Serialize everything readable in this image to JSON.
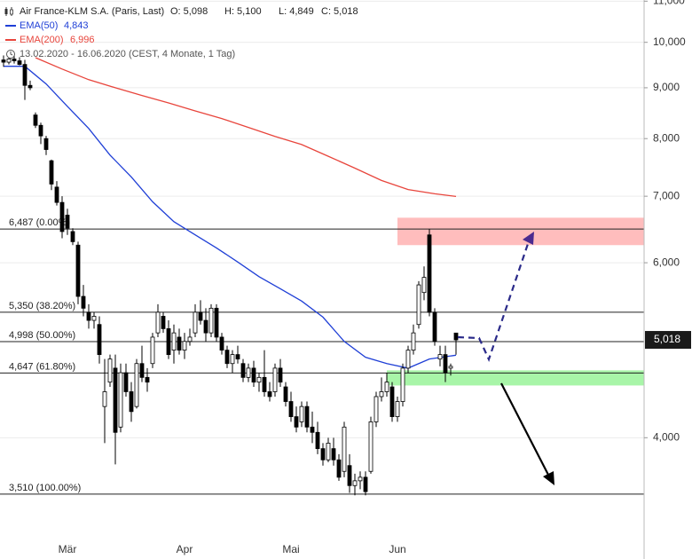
{
  "chart_data": {
    "type": "candlestick",
    "title": "Air France-KLM S.A. (Paris, Last)",
    "open_label": "O: 5,098",
    "high_label": "H: 5,100",
    "low_label": "L: 4,849",
    "close_label": "C: 5,018",
    "subtitle": "13.02.2020 - 16.06.2020   (CEST, 4 Monate, 1 Tag)",
    "log_scale": true,
    "ylim": [
      3.02,
      11.03
    ],
    "yticks": [
      {
        "value": 4,
        "label": "4,000"
      },
      {
        "value": 6,
        "label": "6,000"
      },
      {
        "value": 7,
        "label": "7,000"
      },
      {
        "value": 8,
        "label": "8,000"
      },
      {
        "value": 9,
        "label": "9,000"
      },
      {
        "value": 10,
        "label": "10,000"
      },
      {
        "value": 11,
        "label": "11,000"
      }
    ],
    "grid": true,
    "categories": [
      null,
      null,
      null,
      null,
      null,
      null,
      null,
      null,
      null,
      null,
      null,
      null,
      "Mär",
      null,
      null,
      null,
      null,
      null,
      null,
      null,
      null,
      null,
      null,
      null,
      null,
      null,
      null,
      null,
      null,
      null,
      null,
      null,
      null,
      null,
      "Apr",
      null,
      null,
      null,
      null,
      null,
      null,
      null,
      null,
      null,
      null,
      null,
      null,
      null,
      null,
      null,
      null,
      null,
      null,
      null,
      "Mai",
      null,
      null,
      null,
      null,
      null,
      null,
      null,
      null,
      null,
      null,
      null,
      null,
      null,
      null,
      null,
      null,
      null,
      null,
      null,
      "Jun",
      null,
      null,
      null,
      null,
      null,
      null,
      null,
      null,
      null,
      null,
      null
    ],
    "candles": {
      "open": [
        9.6,
        9.55,
        9.62,
        9.58,
        9.5,
        9.05,
        8.45,
        8.25,
        8.0,
        7.6,
        7.15,
        6.9,
        6.7,
        6.45,
        6.25,
        5.55,
        5.35,
        5.25,
        5.2,
        4.3,
        4.55,
        4.7,
        4.1,
        4.65,
        4.45,
        4.3,
        4.75,
        4.6,
        4.75,
        5.1,
        5.3,
        5.15,
        4.9,
        5.05,
        4.9,
        5.0,
        5.1,
        5.35,
        5.25,
        5.1,
        5.4,
        5.05,
        4.9,
        4.75,
        4.85,
        4.75,
        4.6,
        4.7,
        4.55,
        4.6,
        4.45,
        4.45,
        4.7,
        4.5,
        4.35,
        4.2,
        4.15,
        4.3,
        4.1,
        4.05,
        3.9,
        3.8,
        3.9,
        3.8,
        3.7,
        3.75,
        3.58,
        3.62,
        3.65,
        3.7,
        4.15,
        4.4,
        4.45,
        4.5,
        4.2,
        4.35,
        4.7,
        4.9,
        5.2,
        5.6,
        6.4,
        5.35,
        4.8,
        4.85,
        4.7,
        5.098
      ],
      "high": [
        9.7,
        9.75,
        9.7,
        9.66,
        9.6,
        9.15,
        8.5,
        8.3,
        8.05,
        7.62,
        7.25,
        7.0,
        6.8,
        6.5,
        6.3,
        5.7,
        5.45,
        5.35,
        5.3,
        4.8,
        4.85,
        4.85,
        4.75,
        4.75,
        4.55,
        4.8,
        4.95,
        4.7,
        5.1,
        5.45,
        5.35,
        5.25,
        5.2,
        5.15,
        5.1,
        5.15,
        5.45,
        5.5,
        5.4,
        5.45,
        5.45,
        5.1,
        4.95,
        4.9,
        4.95,
        4.8,
        4.75,
        4.78,
        4.65,
        4.9,
        4.55,
        4.75,
        4.8,
        4.55,
        4.45,
        4.3,
        4.35,
        4.35,
        4.25,
        4.15,
        3.95,
        4.0,
        4.0,
        3.85,
        4.15,
        3.85,
        3.68,
        3.7,
        3.7,
        4.2,
        4.45,
        4.6,
        4.65,
        4.55,
        4.4,
        4.75,
        4.95,
        5.2,
        5.75,
        5.95,
        6.487,
        5.4,
        4.95,
        4.95,
        4.75,
        5.1
      ],
      "low": [
        9.45,
        9.5,
        9.52,
        9.48,
        8.75,
        8.95,
        8.2,
        7.9,
        7.7,
        7.1,
        6.85,
        6.35,
        6.4,
        6.25,
        5.45,
        5.3,
        5.15,
        5.15,
        4.75,
        3.95,
        4.5,
        3.76,
        4.05,
        4.4,
        4.15,
        4.28,
        4.55,
        4.45,
        4.7,
        5.05,
        5.1,
        4.8,
        4.75,
        4.85,
        4.8,
        4.95,
        5.05,
        5.2,
        5.0,
        5.05,
        5.0,
        4.85,
        4.7,
        4.65,
        4.75,
        4.55,
        4.55,
        4.5,
        4.45,
        4.4,
        4.35,
        4.4,
        4.5,
        4.3,
        4.15,
        4.05,
        4.1,
        4.05,
        3.95,
        3.85,
        3.75,
        3.78,
        3.75,
        3.62,
        3.65,
        3.52,
        3.5,
        3.55,
        3.5,
        3.68,
        4.1,
        4.35,
        4.4,
        4.15,
        4.15,
        4.3,
        4.65,
        4.85,
        5.15,
        5.5,
        5.3,
        4.95,
        4.72,
        4.55,
        4.62,
        4.849
      ],
      "close": [
        9.55,
        9.62,
        9.58,
        9.5,
        9.05,
        9.0,
        8.25,
        8.05,
        7.8,
        7.2,
        6.9,
        6.45,
        6.5,
        6.3,
        5.55,
        5.4,
        5.25,
        5.3,
        4.85,
        4.45,
        4.8,
        4.05,
        4.65,
        4.45,
        4.25,
        4.75,
        4.6,
        4.55,
        5.05,
        5.35,
        5.15,
        4.85,
        5.1,
        4.9,
        5.0,
        5.05,
        5.35,
        5.25,
        5.1,
        5.4,
        5.05,
        4.9,
        4.75,
        4.85,
        4.8,
        4.6,
        4.7,
        4.55,
        4.6,
        4.45,
        4.4,
        4.7,
        4.55,
        4.35,
        4.2,
        4.1,
        4.3,
        4.1,
        4.05,
        3.9,
        3.8,
        3.95,
        3.8,
        3.65,
        4.1,
        3.58,
        3.62,
        3.65,
        3.53,
        4.15,
        4.4,
        4.45,
        4.55,
        4.2,
        4.35,
        4.7,
        4.9,
        5.1,
        5.7,
        5.8,
        5.35,
        5.0,
        4.85,
        4.65,
        4.72,
        5.018
      ]
    },
    "series": [
      {
        "name": "EMA(50)",
        "color": "#1f3fd6",
        "last_label": "4,843",
        "x": [
          0,
          4,
          8,
          12,
          16,
          20,
          24,
          28,
          32,
          36,
          40,
          44,
          48,
          52,
          56,
          60,
          64,
          68,
          72,
          76,
          80,
          85
        ],
        "values": [
          9.46,
          9.46,
          9.08,
          8.62,
          8.19,
          7.7,
          7.32,
          6.91,
          6.6,
          6.4,
          6.21,
          6.01,
          5.81,
          5.65,
          5.49,
          5.29,
          5.0,
          4.82,
          4.75,
          4.7,
          4.8,
          4.843
        ]
      },
      {
        "name": "EMA(200)",
        "color": "#e8453c",
        "last_label": "6,996",
        "x": [
          6,
          11,
          16,
          21,
          26,
          31,
          36,
          41,
          46,
          51,
          56,
          61,
          66,
          71,
          76,
          81,
          85
        ],
        "values": [
          9.65,
          9.4,
          9.17,
          9.0,
          8.84,
          8.69,
          8.53,
          8.38,
          8.21,
          8.04,
          7.89,
          7.68,
          7.47,
          7.26,
          7.11,
          7.04,
          6.996
        ]
      }
    ],
    "fib_levels": [
      {
        "value": 6.487,
        "label": "6,487 (0.00%)"
      },
      {
        "value": 5.35,
        "label": "5,350 (38.20%)"
      },
      {
        "value": 4.998,
        "label": "4,998 (50.00%)"
      },
      {
        "value": 4.647,
        "label": "4,647 (61.80%)"
      },
      {
        "value": 3.51,
        "label": "3,510 (100.00%)"
      }
    ],
    "zones": [
      {
        "color": "#ffbdbd",
        "ylim": [
          6.25,
          6.66
        ]
      },
      {
        "color": "#a8f5a8",
        "ylim": [
          4.515,
          4.676
        ]
      }
    ],
    "last_price": {
      "value": 5.018,
      "label": "5,018"
    }
  }
}
